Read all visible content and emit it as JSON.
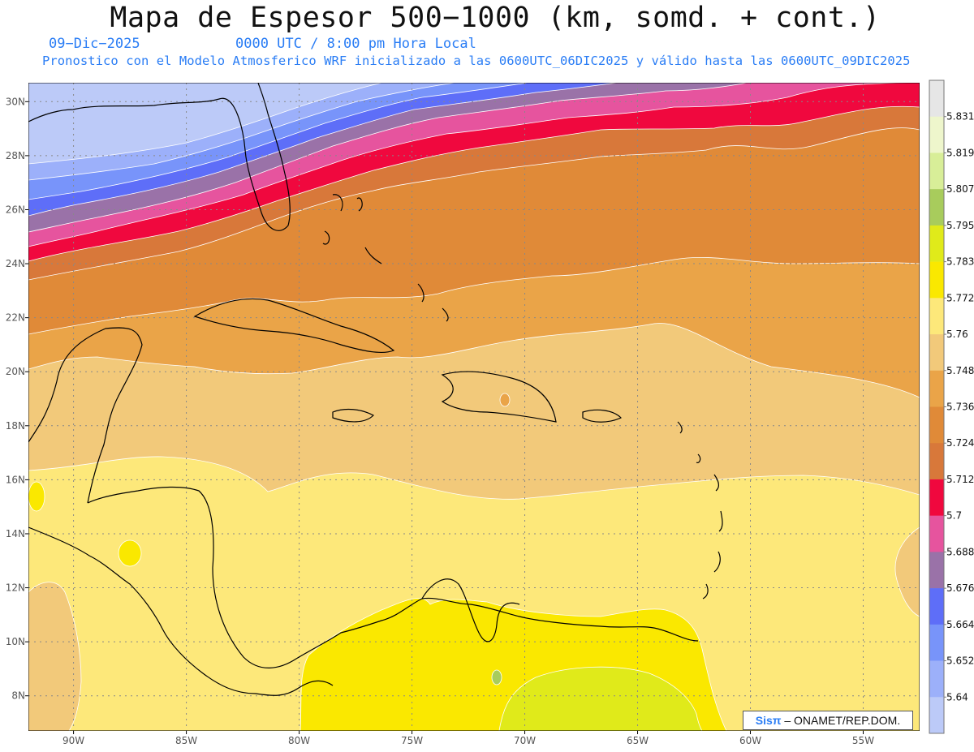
{
  "header": {
    "title": "Mapa de Espesor 500−1000 (km, somd. + cont.)",
    "date": "09−Dic−2025",
    "time": "0000 UTC / 8:00 pm Hora Local",
    "run_info": "Pronostico con el Modelo Atmosferico WRF inicializado a las 0600UTC_06DIC2025 y válido hasta las  0600UTC_09DIC2025"
  },
  "map": {
    "lon_range": [
      -92,
      -52.5
    ],
    "lat_range": [
      6.7,
      30.7
    ],
    "lat_labels": [
      "30N",
      "28N",
      "26N",
      "24N",
      "22N",
      "20N",
      "18N",
      "16N",
      "14N",
      "12N",
      "10N",
      "8N"
    ],
    "lon_labels": [
      "90W",
      "85W",
      "80W",
      "75W",
      "70W",
      "65W",
      "60W",
      "55W"
    ],
    "grid": true
  },
  "colorbar": {
    "labels": [
      "5.831",
      "5.819",
      "5.807",
      "5.795",
      "5.783",
      "5.772",
      "5.76",
      "5.748",
      "5.736",
      "5.724",
      "5.712",
      "5.7",
      "5.688",
      "5.676",
      "5.664",
      "5.652",
      "5.64"
    ],
    "colors": [
      "#e6e6e6",
      "#eef6cc",
      "#d8ee98",
      "#a8cc5c",
      "#e0ea1a",
      "#fae800",
      "#fde87a",
      "#f2c97a",
      "#eaa448",
      "#e08a38",
      "#d8783a",
      "#f0083e",
      "#e6549e",
      "#9a72a8",
      "#5e6ef8",
      "#7894fa",
      "#9cb0fa",
      "#bccaf8"
    ]
  },
  "credit": {
    "logo": "Sisπ",
    "text": "– ONAMET/REP.DOM."
  }
}
